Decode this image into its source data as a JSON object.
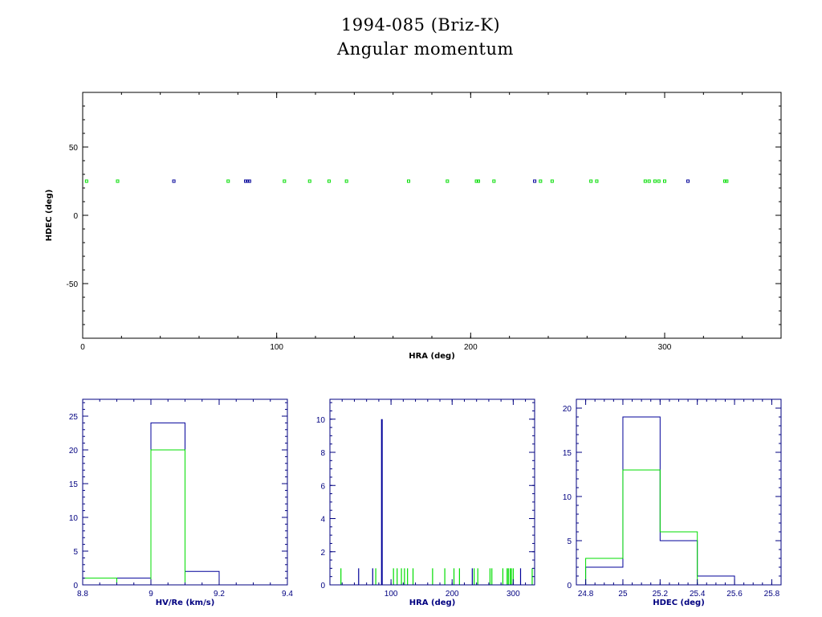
{
  "title_line1": "1994-085 (Briz-K)",
  "title_line2": "Angular momentum",
  "colors": {
    "green": "#00dd00",
    "blue": "#000099",
    "axis_black": "#000000",
    "axis_blue": "#000080"
  },
  "chart_data": [
    {
      "type": "scatter",
      "xlabel": "HRA (deg)",
      "ylabel": "HDEC (deg)",
      "xlim": [
        0,
        360
      ],
      "ylim": [
        -90,
        90
      ],
      "xticks": [
        0,
        100,
        200,
        300
      ],
      "yticks": [
        -50,
        0,
        50
      ],
      "grid": false,
      "series": [
        {
          "color": "green",
          "marker": "square",
          "points": [
            [
              2,
              25
            ],
            [
              18,
              25
            ],
            [
              75,
              25
            ],
            [
              104,
              25
            ],
            [
              117,
              25
            ],
            [
              127,
              25
            ],
            [
              136,
              25
            ],
            [
              168,
              25
            ],
            [
              188,
              25
            ],
            [
              203,
              25
            ],
            [
              204,
              25
            ],
            [
              212,
              25
            ],
            [
              236,
              25
            ],
            [
              242,
              25
            ],
            [
              262,
              25
            ],
            [
              265,
              25
            ],
            [
              290,
              25
            ],
            [
              292,
              25
            ],
            [
              295,
              25
            ],
            [
              297,
              25
            ],
            [
              300,
              25
            ],
            [
              331,
              25
            ],
            [
              332,
              25
            ]
          ]
        },
        {
          "color": "blue",
          "marker": "square",
          "points": [
            [
              47,
              25
            ],
            [
              84,
              25
            ],
            [
              85,
              25
            ],
            [
              86,
              25
            ],
            [
              233,
              25
            ],
            [
              312,
              25
            ]
          ]
        }
      ]
    },
    {
      "type": "histogram",
      "xlabel": "HV/Re (km/s)",
      "xlim": [
        8.8,
        9.4
      ],
      "ylim": [
        0,
        27.5
      ],
      "xticks": [
        8.8,
        9,
        9.2,
        9.4
      ],
      "yticks": [
        0,
        5,
        10,
        15,
        20,
        25
      ],
      "series": [
        {
          "color": "blue",
          "bin_edges": [
            8.9,
            9.0,
            9.1,
            9.2
          ],
          "counts": [
            1,
            24,
            2
          ]
        },
        {
          "color": "green",
          "bin_edges": [
            8.8,
            8.9,
            9.0,
            9.1
          ],
          "counts": [
            1,
            0,
            20
          ]
        }
      ]
    },
    {
      "type": "histogram",
      "xlabel": "HRA (deg)",
      "xlim": [
        0,
        335
      ],
      "ylim": [
        0,
        11.2
      ],
      "xticks": [
        100,
        200,
        300
      ],
      "yticks": [
        0,
        2,
        4,
        6,
        8,
        10
      ],
      "series": [
        {
          "color": "green",
          "spikes": [
            [
              18,
              1
            ],
            [
              75,
              1
            ],
            [
              104,
              1
            ],
            [
              110,
              1
            ],
            [
              117,
              1
            ],
            [
              122,
              1
            ],
            [
              127,
              1
            ],
            [
              136,
              1
            ],
            [
              168,
              1
            ],
            [
              188,
              1
            ],
            [
              203,
              1
            ],
            [
              212,
              1
            ],
            [
              236,
              1
            ],
            [
              242,
              1
            ],
            [
              262,
              1
            ],
            [
              265,
              1
            ],
            [
              283,
              1
            ],
            [
              290,
              1
            ],
            [
              292,
              1
            ],
            [
              295,
              1
            ],
            [
              297,
              1
            ],
            [
              300,
              1
            ],
            [
              331,
              1
            ]
          ]
        },
        {
          "color": "blue",
          "spikes": [
            [
              47,
              1
            ],
            [
              70,
              1
            ],
            [
              85,
              10
            ],
            [
              233,
              1
            ],
            [
              312,
              1
            ]
          ]
        }
      ]
    },
    {
      "type": "histogram",
      "xlabel": "HDEC (deg)",
      "xlim": [
        24.75,
        25.85
      ],
      "ylim": [
        0,
        21
      ],
      "xticks": [
        24.8,
        25,
        25.2,
        25.4,
        25.6,
        25.8
      ],
      "yticks": [
        0,
        5,
        10,
        15,
        20
      ],
      "series": [
        {
          "color": "blue",
          "bin_edges": [
            24.8,
            25.0,
            25.2,
            25.4,
            25.6
          ],
          "counts": [
            2,
            19,
            5,
            1
          ]
        },
        {
          "color": "green",
          "bin_edges": [
            24.8,
            25.0,
            25.2,
            25.4
          ],
          "counts": [
            3,
            13,
            6
          ]
        }
      ]
    }
  ]
}
